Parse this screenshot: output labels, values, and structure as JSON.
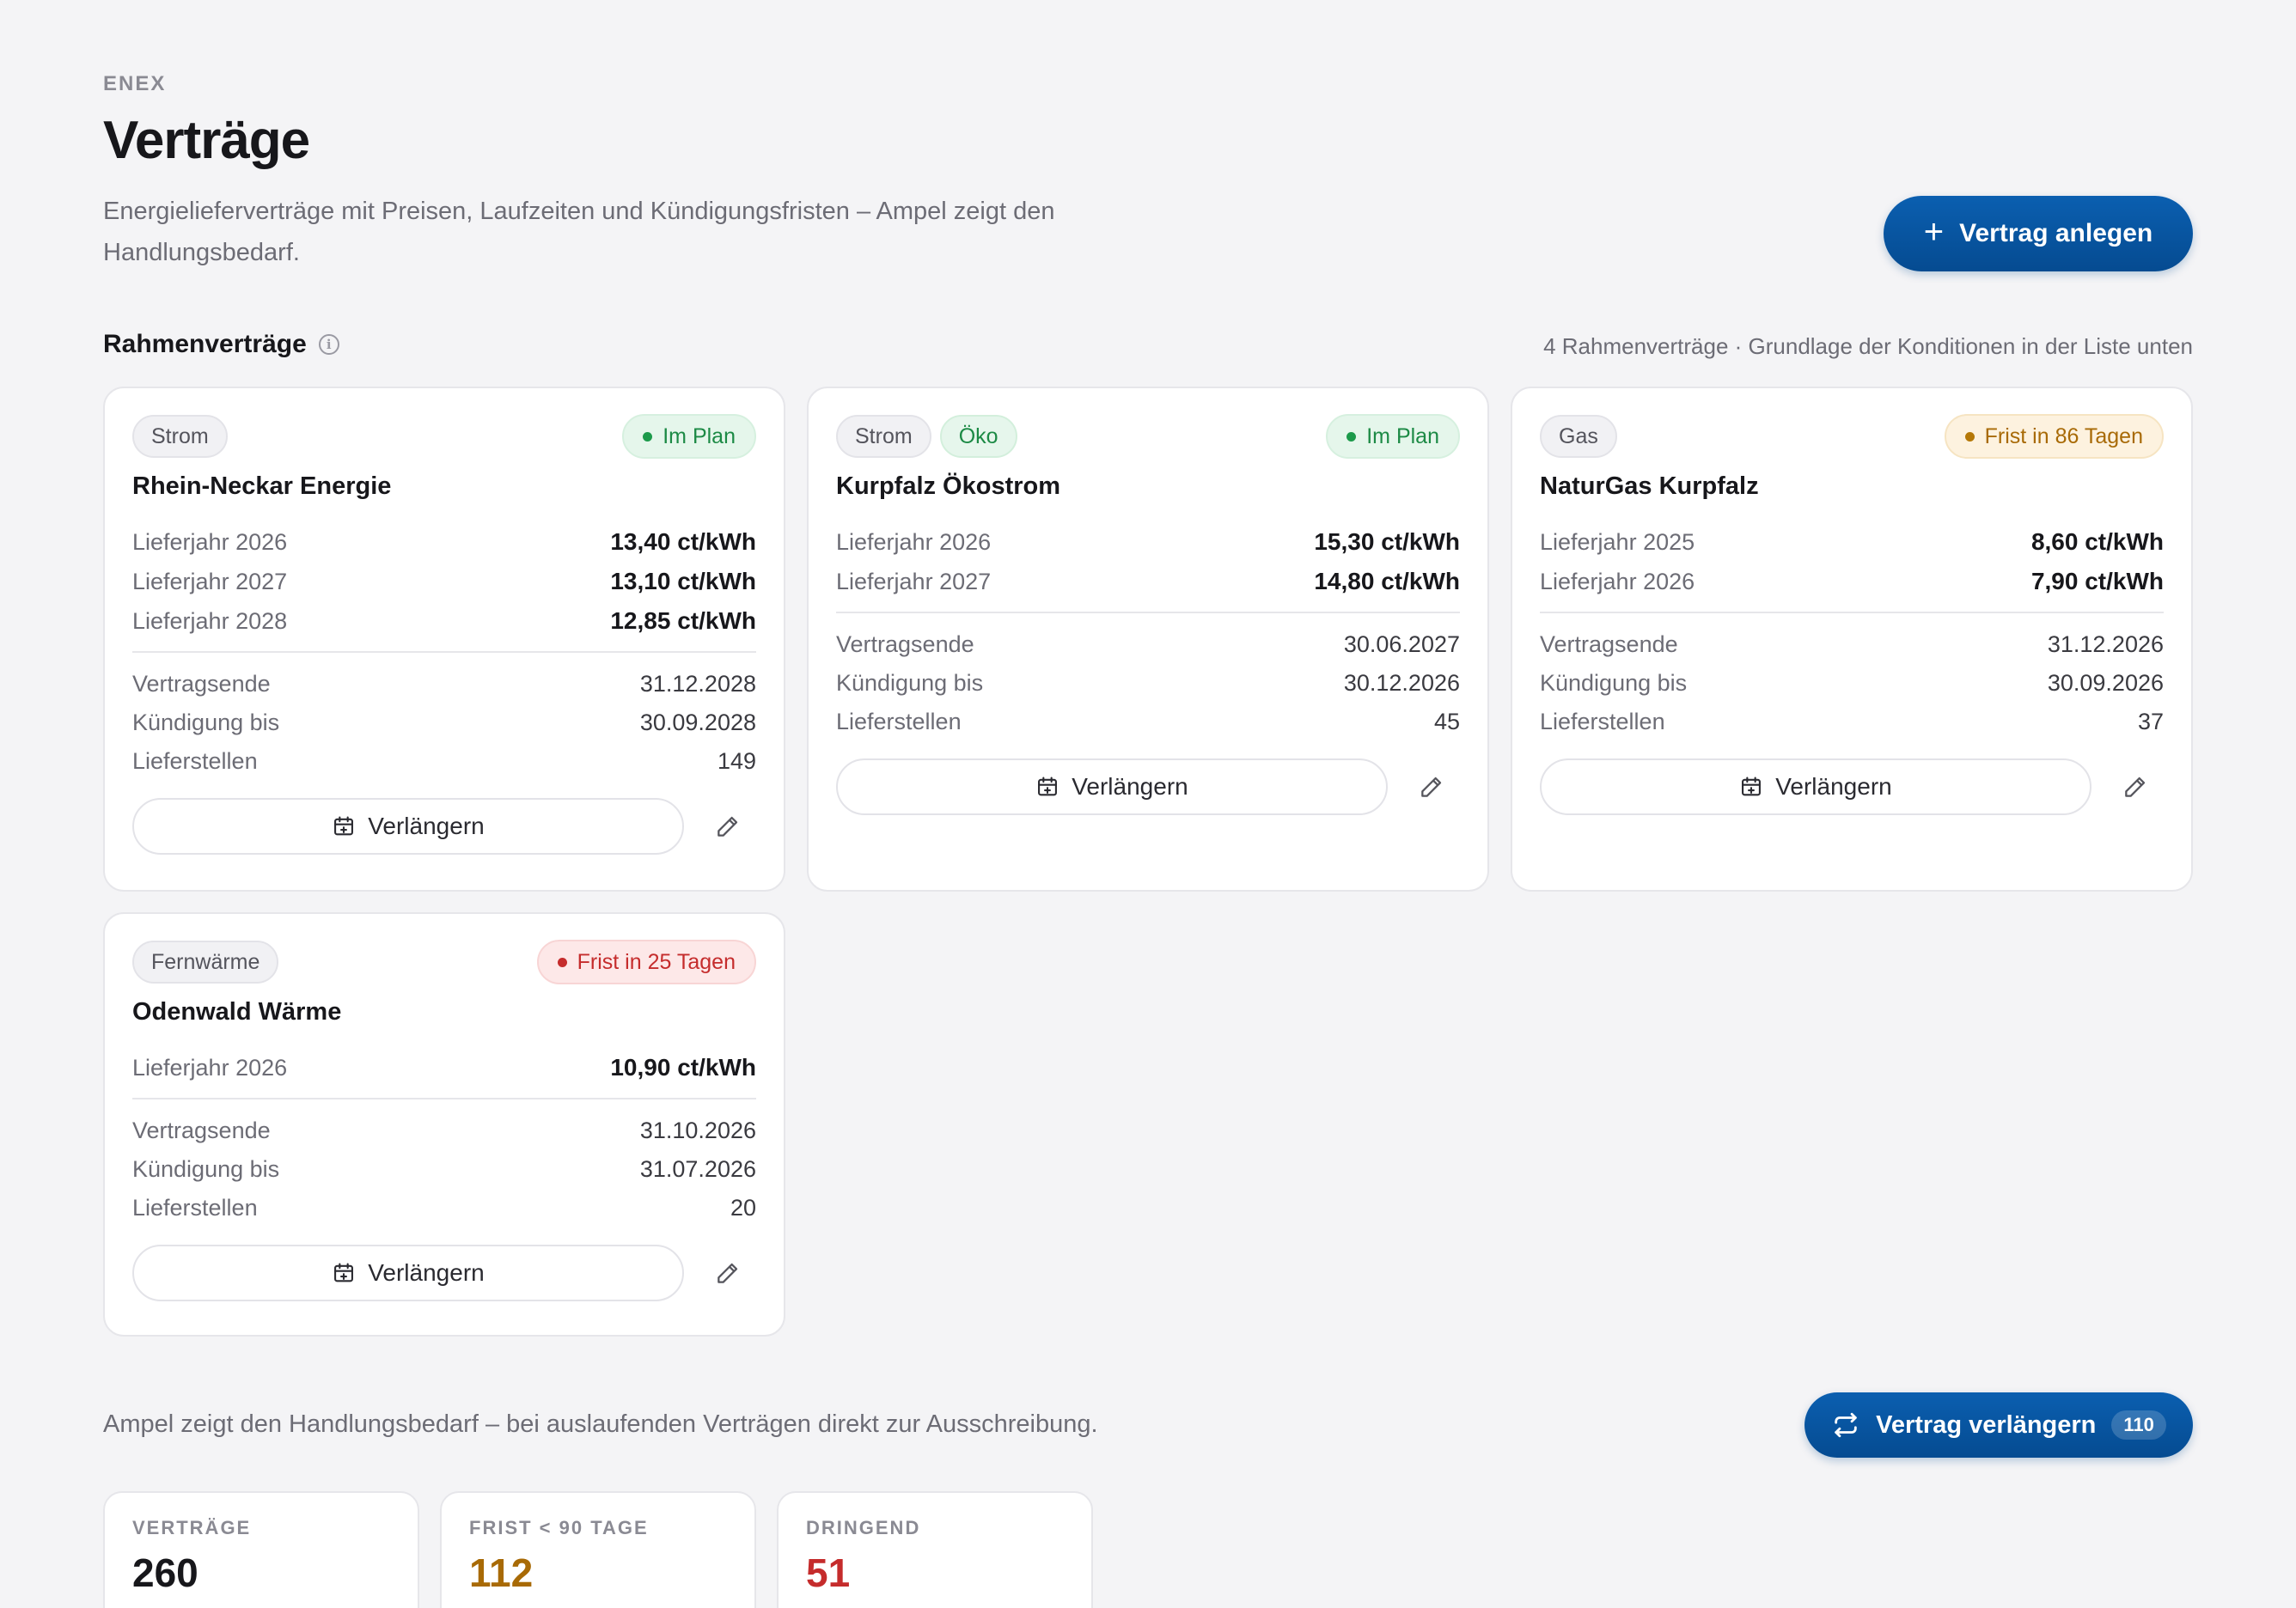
{
  "header": {
    "brand": "ENEX",
    "title": "Verträge",
    "subtitle": "Energielieferverträge mit Preisen, Laufzeiten und Kündigungsfristen – Ampel zeigt den Handlungsbedarf.",
    "new_button_label": "Vertrag anlegen"
  },
  "section": {
    "title": "Rahmenverträge",
    "meta": "4 Rahmenverträge · Grundlage der Konditionen in der Liste unten"
  },
  "labels": {
    "contract_end": "Vertragsende",
    "cancel_until": "Kündigung bis",
    "delivery_points": "Lieferstellen",
    "extend": "Verlängern"
  },
  "cards": [
    {
      "tags": [
        "Strom"
      ],
      "status": "Im Plan",
      "status_color": "#1c8a45",
      "name": "Rhein-Neckar Energie",
      "prices": [
        {
          "label": "Lieferjahr 2026",
          "value": "13,40 ct/kWh"
        },
        {
          "label": "Lieferjahr 2027",
          "value": "13,10 ct/kWh"
        },
        {
          "label": "Lieferjahr 2028",
          "value": "12,85 ct/kWh"
        }
      ],
      "contract_end": "31.12.2028",
      "cancel_until": "30.09.2028",
      "delivery_points": "149"
    },
    {
      "tags": [
        "Strom",
        "Öko"
      ],
      "status": "Im Plan",
      "status_color": "#1c8a45",
      "name": "Kurpfalz Ökostrom",
      "prices": [
        {
          "label": "Lieferjahr 2026",
          "value": "15,30 ct/kWh"
        },
        {
          "label": "Lieferjahr 2027",
          "value": "14,80 ct/kWh"
        }
      ],
      "contract_end": "30.06.2027",
      "cancel_until": "30.12.2026",
      "delivery_points": "45"
    },
    {
      "tags": [
        "Gas"
      ],
      "status": "Frist in 86 Tagen",
      "status_color": "#a86a06",
      "name": "NaturGas Kurpfalz",
      "prices": [
        {
          "label": "Lieferjahr 2025",
          "value": "8,60 ct/kWh"
        },
        {
          "label": "Lieferjahr 2026",
          "value": "7,90 ct/kWh"
        }
      ],
      "contract_end": "31.12.2026",
      "cancel_until": "30.09.2026",
      "delivery_points": "37"
    },
    {
      "tags": [
        "Fernwärme"
      ],
      "status": "Frist in 25 Tagen",
      "status_color": "#c52c2c",
      "name": "Odenwald Wärme",
      "prices": [
        {
          "label": "Lieferjahr 2026",
          "value": "10,90 ct/kWh"
        }
      ],
      "contract_end": "31.10.2026",
      "cancel_until": "31.07.2026",
      "delivery_points": "20"
    }
  ],
  "footer": {
    "hint": "Ampel zeigt den Handlungsbedarf – bei auslaufenden Verträgen direkt zur Ausschreibung.",
    "extend_button_label": "Vertrag verlängern",
    "extend_button_count": "110"
  },
  "kpis": [
    {
      "label": "VERTRÄGE",
      "value": "260"
    },
    {
      "label": "FRIST < 90 TAGE",
      "value": "112"
    },
    {
      "label": "DRINGEND",
      "value": "51"
    }
  ]
}
